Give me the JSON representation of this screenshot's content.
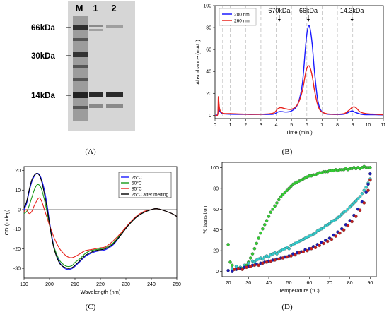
{
  "panels": {
    "A": "(A)",
    "B": "(B)",
    "C": "(C)",
    "D": "(D)"
  },
  "gel": {
    "lane_labels": [
      "M",
      "1",
      "2"
    ],
    "marker_labels": [
      "66kDa",
      "30kDa",
      "14kDa"
    ],
    "colors": {
      "background": "#d4d4d4",
      "band": "#3a3a3a"
    }
  },
  "chart_data": [
    {
      "id": "B",
      "type": "line",
      "xlabel": "Time (min.)",
      "ylabel": "Absorbance (mAU)",
      "xlim": [
        0,
        11
      ],
      "ylim": [
        -3,
        100
      ],
      "xticks": [
        0,
        1,
        2,
        3,
        4,
        5,
        6,
        7,
        8,
        9,
        10,
        11
      ],
      "yticks": [
        0,
        20,
        40,
        60,
        80,
        100
      ],
      "vlines": [
        0.5,
        1,
        2,
        3,
        4,
        5,
        6,
        7,
        8,
        9,
        10
      ],
      "legend_position": "top-left",
      "annotations": [
        {
          "text": "670kDa",
          "x": 4.2
        },
        {
          "text": "66kDa",
          "x": 6.1
        },
        {
          "text": "14.3kDa",
          "x": 8.95
        }
      ],
      "series": [
        {
          "name": "280 nm",
          "color": "#1a1aff",
          "x": [
            0,
            0.18,
            0.22,
            0.3,
            0.5,
            1,
            2,
            3,
            3.8,
            4.1,
            4.3,
            4.6,
            5,
            5.4,
            5.7,
            5.9,
            6.0,
            6.1,
            6.2,
            6.35,
            6.5,
            6.7,
            6.9,
            7.2,
            7.6,
            8.4,
            8.7,
            8.95,
            9.2,
            9.6,
            10,
            10.5,
            11
          ],
          "y": [
            0,
            1,
            9,
            4,
            1.5,
            1,
            0.8,
            0.8,
            1,
            3,
            3.5,
            3,
            4,
            10,
            28,
            60,
            74,
            81,
            80,
            65,
            40,
            15,
            5,
            1.5,
            0.8,
            1,
            2.5,
            4,
            2.5,
            0.8,
            0.5,
            0.5,
            0.3
          ]
        },
        {
          "name": "260 nm",
          "color": "#e8221c",
          "x": [
            0,
            0.18,
            0.22,
            0.3,
            0.5,
            1,
            2,
            3,
            3.8,
            4.1,
            4.3,
            4.6,
            5,
            5.4,
            5.7,
            5.9,
            6.0,
            6.1,
            6.2,
            6.35,
            6.5,
            6.7,
            6.9,
            7.2,
            7.6,
            8.4,
            8.7,
            9.0,
            9.2,
            9.5,
            9.9,
            10.5,
            11
          ],
          "y": [
            0,
            1,
            17,
            6,
            2,
            1.5,
            1,
            1,
            2,
            6,
            7,
            6,
            5.5,
            10,
            22,
            37,
            43,
            45,
            44,
            36,
            23,
            10,
            4,
            1.8,
            1,
            1.5,
            4,
            7.5,
            7,
            3,
            1.5,
            1,
            0.5
          ]
        }
      ]
    },
    {
      "id": "C",
      "type": "line",
      "xlabel": "Wavelength (nm)",
      "ylabel": "CD (mdeg)",
      "xlim": [
        190,
        250
      ],
      "ylim": [
        -35,
        22
      ],
      "xticks": [
        190,
        200,
        210,
        220,
        230,
        240,
        250
      ],
      "yticks": [
        -30,
        -20,
        -10,
        0,
        10,
        20
      ],
      "legend_position": "top-right",
      "series": [
        {
          "name": "25°C",
          "color": "#1a1aff",
          "x": [
            190,
            191,
            192,
            193,
            194,
            195,
            196,
            197,
            198,
            199,
            200,
            201,
            202,
            204,
            206,
            207,
            208,
            209,
            210,
            212,
            214,
            216,
            218,
            220,
            222,
            225,
            228,
            231,
            234,
            237,
            240,
            242,
            245,
            248,
            250
          ],
          "y": [
            0,
            3,
            9,
            14,
            17,
            18.5,
            18,
            15,
            10,
            3,
            -6,
            -14,
            -20,
            -27,
            -30,
            -30.5,
            -30.5,
            -30,
            -29,
            -26.5,
            -24,
            -22.5,
            -21.5,
            -21,
            -20.5,
            -18,
            -13,
            -8,
            -4,
            -1.5,
            0,
            0.5,
            -0.5,
            -2,
            -3.5
          ]
        },
        {
          "name": "50°C",
          "color": "#1a9a1a",
          "x": [
            190,
            191,
            192,
            193,
            194,
            195,
            196,
            197,
            198,
            199,
            200,
            201,
            202,
            204,
            206,
            207,
            208,
            209,
            210,
            212,
            214,
            216,
            218,
            220,
            222,
            225,
            228,
            231,
            234,
            237,
            240,
            242,
            245,
            248,
            250
          ],
          "y": [
            -2,
            -1,
            2,
            6,
            10,
            12.5,
            12.5,
            10,
            5,
            -1,
            -8,
            -15,
            -20,
            -26,
            -28.5,
            -29,
            -29,
            -28.5,
            -27,
            -25,
            -22.5,
            -21,
            -20.5,
            -20,
            -19.5,
            -17,
            -12.5,
            -8,
            -4,
            -1.5,
            0,
            0.5,
            -0.5,
            -2,
            -3.5
          ]
        },
        {
          "name": "85°C",
          "color": "#e8221c",
          "x": [
            190,
            191,
            192,
            193,
            194,
            195,
            196,
            197,
            198,
            199,
            200,
            201,
            202,
            204,
            206,
            207,
            208,
            209,
            210,
            212,
            214,
            216,
            218,
            220,
            222,
            225,
            228,
            231,
            234,
            237,
            240,
            242,
            245,
            248,
            250
          ],
          "y": [
            -1,
            0,
            -2,
            -1,
            2,
            4.5,
            6,
            4,
            0,
            -4,
            -8,
            -11.5,
            -15,
            -20,
            -23,
            -24,
            -24.5,
            -24.5,
            -24,
            -22.5,
            -21,
            -20.5,
            -20,
            -19.5,
            -19,
            -16,
            -12,
            -7.5,
            -3.5,
            -1,
            0,
            0.5,
            -0.5,
            -2,
            -3.5
          ]
        },
        {
          "name": "25°C after melting",
          "color": "#000000",
          "x": [
            190,
            191,
            192,
            193,
            194,
            195,
            196,
            197,
            198,
            199,
            200,
            201,
            202,
            204,
            206,
            207,
            208,
            209,
            210,
            212,
            214,
            216,
            218,
            220,
            222,
            225,
            228,
            231,
            234,
            237,
            240,
            242,
            245,
            248,
            250
          ],
          "y": [
            1,
            4,
            10,
            15,
            17.5,
            18.5,
            17.5,
            14,
            8,
            1,
            -7,
            -15,
            -21,
            -27.5,
            -29.5,
            -30,
            -30,
            -29.5,
            -28.5,
            -26,
            -23.5,
            -22,
            -21,
            -20.5,
            -20,
            -17.5,
            -13,
            -8,
            -4,
            -1.5,
            0,
            0.5,
            -0.5,
            -2,
            -3.5
          ]
        }
      ]
    },
    {
      "id": "D",
      "type": "scatter",
      "xlabel": "Temperature (°C)",
      "ylabel": "% transition",
      "xlim": [
        17,
        93
      ],
      "ylim": [
        -5,
        105
      ],
      "xticks": [
        20,
        30,
        40,
        50,
        60,
        70,
        80,
        90
      ],
      "yticks": [
        0,
        20,
        40,
        60,
        80,
        100
      ],
      "series": [
        {
          "color": "#33cc33",
          "x": [
            20,
            21,
            22,
            24,
            26,
            27,
            28,
            29,
            30,
            31,
            32,
            33,
            34,
            35,
            36,
            37,
            38,
            39,
            40,
            41,
            42,
            43,
            44,
            45,
            46,
            47,
            48,
            49,
            50,
            51,
            52,
            53,
            54,
            55,
            56,
            57,
            58,
            59,
            60,
            61,
            62,
            63,
            64,
            65,
            66,
            67,
            68,
            69,
            70,
            71,
            72,
            73,
            74,
            75,
            76,
            77,
            78,
            79,
            80,
            81,
            82,
            83,
            84,
            85,
            86,
            87,
            88,
            89,
            90
          ],
          "y": [
            26,
            9,
            6,
            3,
            4,
            3,
            4,
            6,
            9,
            13,
            17,
            22,
            27,
            32,
            37,
            41,
            45,
            49,
            53,
            57,
            60,
            63,
            66,
            69,
            72,
            74,
            76,
            78,
            80,
            82,
            84,
            85,
            86,
            87,
            88,
            89,
            90,
            91,
            92,
            92,
            93,
            93,
            94,
            95,
            95,
            96,
            96,
            96,
            97,
            97,
            97,
            98,
            97,
            98,
            98,
            98,
            99,
            98,
            99,
            99,
            100,
            99,
            100,
            99,
            100,
            101,
            100,
            100,
            100
          ]
        },
        {
          "color": "#33cccc",
          "x": [
            22,
            24,
            26,
            28,
            30,
            32,
            33,
            34,
            35,
            36,
            37,
            38,
            39,
            40,
            41,
            42,
            43,
            44,
            45,
            46,
            47,
            48,
            49,
            50,
            51,
            52,
            53,
            54,
            55,
            56,
            57,
            58,
            59,
            60,
            61,
            62,
            63,
            64,
            65,
            66,
            67,
            68,
            69,
            70,
            71,
            72,
            73,
            74,
            75,
            76,
            77,
            78,
            79,
            80,
            81,
            82,
            83,
            84,
            85,
            86,
            87,
            88,
            89,
            90
          ],
          "y": [
            3,
            5,
            4,
            6,
            8,
            10,
            9,
            11,
            12,
            13,
            12,
            14,
            15,
            14,
            16,
            17,
            18,
            17,
            19,
            20,
            21,
            22,
            23,
            22,
            25,
            26,
            27,
            28,
            29,
            30,
            31,
            32,
            33,
            34,
            35,
            36,
            37,
            39,
            40,
            41,
            42,
            44,
            45,
            46,
            48,
            49,
            50,
            52,
            53,
            55,
            57,
            58,
            60,
            62,
            64,
            66,
            68,
            70,
            72,
            75,
            78,
            81,
            85,
            89
          ]
        },
        {
          "color": "#1a1ab8",
          "x": [
            20,
            22,
            24,
            26,
            28,
            30,
            32,
            34,
            36,
            38,
            40,
            42,
            44,
            46,
            48,
            50,
            52,
            54,
            56,
            58,
            60,
            62,
            64,
            66,
            68,
            70,
            72,
            74,
            76,
            78,
            80,
            82,
            84,
            86,
            88,
            89,
            90
          ],
          "y": [
            1,
            0,
            2,
            3,
            4,
            5,
            6,
            7,
            8,
            9,
            10,
            11,
            12,
            13,
            14,
            15,
            17,
            18,
            19,
            21,
            22,
            24,
            26,
            28,
            30,
            32,
            35,
            38,
            41,
            45,
            49,
            54,
            60,
            67,
            76,
            84,
            94
          ]
        },
        {
          "color": "#c81e1e",
          "x": [
            23,
            25,
            27,
            29,
            31,
            33,
            35,
            37,
            39,
            41,
            43,
            45,
            47,
            49,
            51,
            53,
            55,
            57,
            59,
            61,
            63,
            65,
            67,
            69,
            71,
            73,
            75,
            77,
            79,
            81,
            83,
            85,
            87,
            89,
            90
          ],
          "y": [
            2,
            3,
            2,
            4,
            5,
            6,
            6,
            8,
            9,
            10,
            11,
            12,
            13,
            14,
            15,
            16,
            18,
            19,
            20,
            22,
            23,
            25,
            27,
            29,
            31,
            34,
            37,
            40,
            44,
            48,
            53,
            59,
            66,
            78,
            88
          ]
        }
      ]
    }
  ]
}
